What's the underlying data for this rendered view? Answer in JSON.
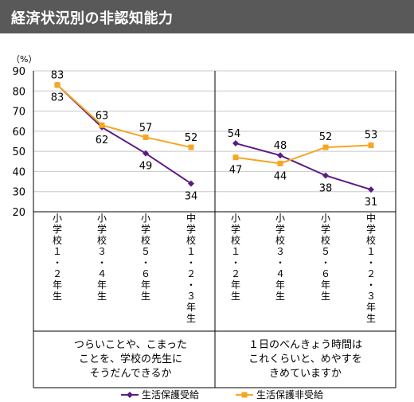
{
  "header": {
    "title": "経済状況別の非認知能力"
  },
  "chart_data": {
    "type": "line",
    "unit": "（%）",
    "y_ticks": [
      20,
      30,
      40,
      50,
      60,
      70,
      80,
      90
    ],
    "ylim": [
      20,
      90
    ],
    "grid": true,
    "categories": [
      "小学校１・２年生",
      "小学校３・４年生",
      "小学校５・６年生",
      "中学校１・２・３年生",
      "小学校１・２年生",
      "小学校３・４年生",
      "小学校５・６年生",
      "中学校１・２・３年生"
    ],
    "groups": [
      {
        "label_lines": [
          "つらいことや、こまった",
          "ことを、学校の先生に",
          "そうだんできるか"
        ]
      },
      {
        "label_lines": [
          "１日のべんきょう時間は",
          "これくらいと、めやすを",
          "きめていますか"
        ]
      }
    ],
    "series": [
      {
        "name": "生活保護受給",
        "color": "#5b1c80",
        "marker": "diamond",
        "groups": [
          [
            83,
            62,
            49,
            34
          ],
          [
            54,
            48,
            38,
            31
          ]
        ]
      },
      {
        "name": "生活保護非受給",
        "color": "#f5a623",
        "marker": "square",
        "groups": [
          [
            83,
            63,
            57,
            52
          ],
          [
            47,
            44,
            52,
            53
          ]
        ]
      }
    ],
    "legend": "bottom"
  }
}
